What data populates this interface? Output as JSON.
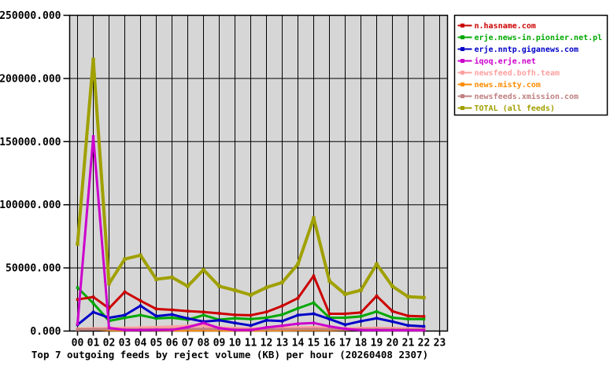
{
  "page": {
    "background": "#ffffff"
  },
  "chart_data": {
    "type": "line",
    "title": "Top 7 outgoing feeds by reject volume (KB) per hour (20260408 2307)",
    "xlabel": "",
    "ylabel": "",
    "ylim": [
      0,
      250000
    ],
    "grid": true,
    "plot_bg_color": "#d6d6d6",
    "grid_color": "#000000",
    "axis_color": "#000000",
    "legend_position": "outside-top-right",
    "legend_bg": "#ffffff",
    "legend_border_color": "#000000",
    "y_ticks": [
      {
        "value": 250000,
        "label": "250000.000"
      },
      {
        "value": 200000,
        "label": "200000.000"
      },
      {
        "value": 150000,
        "label": "150000.000"
      },
      {
        "value": 100000,
        "label": "100000.000"
      },
      {
        "value": 50000,
        "label": "50000.000"
      },
      {
        "value": 0,
        "label": "0.000"
      }
    ],
    "x_tick_labels": [
      "00",
      "01",
      "02",
      "03",
      "04",
      "05",
      "06",
      "07",
      "08",
      "09",
      "10",
      "11",
      "12",
      "13",
      "14",
      "15",
      "16",
      "17",
      "18",
      "19",
      "20",
      "21",
      "22",
      "23"
    ],
    "hours_with_data": [
      0,
      1,
      2,
      3,
      4,
      5,
      6,
      7,
      8,
      9,
      10,
      11,
      12,
      13,
      14,
      15,
      16,
      17,
      18,
      19,
      20,
      21,
      22
    ],
    "series": [
      {
        "name": "n.hasname.com",
        "color": "#cc0000",
        "zorder": 6,
        "width": 3,
        "values": [
          25000,
          27000,
          18000,
          31000,
          24000,
          17500,
          16800,
          15800,
          15100,
          14000,
          12800,
          12500,
          15100,
          19900,
          26100,
          43700,
          13700,
          13700,
          14700,
          27800,
          15700,
          12000,
          11600
        ]
      },
      {
        "name": "erje.news-in.pionier.net.pl",
        "color": "#00a800",
        "zorder": 4,
        "width": 3,
        "values": [
          34400,
          22000,
          8000,
          10500,
          12600,
          10000,
          10600,
          9000,
          12600,
          9000,
          10100,
          9500,
          10600,
          13000,
          18000,
          22400,
          10600,
          10600,
          11600,
          15400,
          10600,
          9500,
          9500
        ]
      },
      {
        "name": "erje.nntp.giganews.com",
        "color": "#0000c8",
        "zorder": 5,
        "width": 3,
        "values": [
          5000,
          15000,
          10500,
          12600,
          20000,
          11800,
          13100,
          10000,
          7500,
          8500,
          6400,
          4400,
          8500,
          7900,
          12600,
          13700,
          9500,
          5000,
          7800,
          10100,
          7500,
          4400,
          3700
        ]
      },
      {
        "name": "iqoq.erje.net",
        "color": "#cc00cc",
        "zorder": 7,
        "width": 3,
        "values": [
          5500,
          154000,
          2500,
          800,
          800,
          900,
          900,
          3100,
          6400,
          2300,
          800,
          800,
          2900,
          4200,
          5800,
          6400,
          3700,
          1700,
          700,
          700,
          600,
          600,
          600
        ]
      },
      {
        "name": "newsfeed.bofh.team",
        "color": "#ffa0a0",
        "zorder": 1,
        "width": 4,
        "values": [
          1500,
          1800,
          2000,
          2200,
          2500,
          2800,
          3200,
          3800,
          4400,
          2500,
          2000,
          1800,
          2000,
          2200,
          2500,
          2800,
          2200,
          1800,
          2000,
          2200,
          2000,
          1800,
          1700
        ]
      },
      {
        "name": "news.misty.com",
        "color": "#ff8c00",
        "zorder": 2,
        "width": 2.5,
        "values": [
          1600,
          1400,
          600,
          500,
          800,
          600,
          500,
          400,
          500,
          400,
          400,
          400,
          500,
          500,
          600,
          700,
          600,
          900,
          1200,
          1400,
          700,
          800,
          700
        ]
      },
      {
        "name": "newsfeeds.xmission.com",
        "color": "#c08080",
        "zorder": 3,
        "width": 3,
        "values": [
          1300,
          1400,
          1500,
          1400,
          1400,
          1500,
          1500,
          1600,
          1700,
          1500,
          1400,
          1300,
          1400,
          1400,
          1500,
          1600,
          1400,
          1300,
          1400,
          1500,
          1400,
          1300,
          1300
        ]
      },
      {
        "name": "TOTAL (all feeds)",
        "color": "#a0a000",
        "zorder": 8,
        "width": 4,
        "values": [
          69000,
          215000,
          37500,
          57000,
          60000,
          41000,
          42500,
          35500,
          48500,
          35500,
          32300,
          28600,
          34500,
          38500,
          53000,
          89500,
          39600,
          29200,
          32300,
          53000,
          35400,
          27200,
          26500
        ]
      }
    ]
  }
}
